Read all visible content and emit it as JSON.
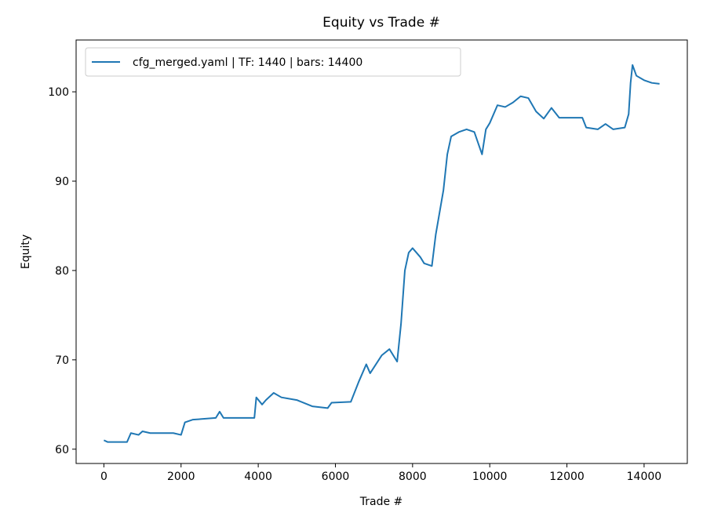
{
  "chart_data": {
    "type": "line",
    "title": "Equity vs Trade #",
    "xlabel": "Trade #",
    "ylabel": "Equity",
    "x": [
      0,
      100,
      600,
      700,
      900,
      1000,
      1200,
      1800,
      2000,
      2100,
      2300,
      2900,
      3000,
      3100,
      3900,
      3950,
      4100,
      4200,
      4400,
      4600,
      5000,
      5400,
      5800,
      5900,
      6400,
      6600,
      6800,
      6900,
      7200,
      7400,
      7600,
      7700,
      7800,
      7900,
      8000,
      8200,
      8300,
      8500,
      8600,
      8800,
      8900,
      9000,
      9200,
      9400,
      9600,
      9800,
      9900,
      10000,
      10200,
      10400,
      10600,
      10800,
      11000,
      11200,
      11400,
      11600,
      11800,
      12400,
      12500,
      12800,
      13000,
      13200,
      13500,
      13600,
      13650,
      13700,
      13800,
      14000,
      14200,
      14400
    ],
    "series": [
      {
        "name": "cfg_merged.yaml | TF: 1440 | bars: 14400",
        "color": "#1f77b4",
        "values": [
          61.0,
          60.8,
          60.8,
          61.8,
          61.6,
          62.0,
          61.8,
          61.8,
          61.6,
          63.0,
          63.3,
          63.5,
          64.2,
          63.5,
          63.5,
          65.8,
          65.0,
          65.5,
          66.3,
          65.8,
          65.5,
          64.8,
          64.6,
          65.2,
          65.3,
          67.5,
          69.5,
          68.5,
          70.5,
          71.2,
          69.8,
          74,
          80,
          82,
          82.5,
          81.5,
          80.8,
          80.5,
          84,
          89,
          93,
          95,
          95.5,
          95.8,
          95.5,
          93,
          95.8,
          96.5,
          98.5,
          98.3,
          98.8,
          99.5,
          99.3,
          97.8,
          97.0,
          98.2,
          97.1,
          97.1,
          96.0,
          95.8,
          96.4,
          95.8,
          96.0,
          97.5,
          101,
          103,
          101.8,
          101.3,
          101.0,
          100.9
        ]
      }
    ],
    "xlim": [
      -720,
      15120
    ],
    "ylim": [
      58.4,
      105.8
    ],
    "xticks": [
      0,
      2000,
      4000,
      6000,
      8000,
      10000,
      12000,
      14000
    ],
    "yticks": [
      60,
      70,
      80,
      90,
      100
    ],
    "legend": "upper left"
  }
}
